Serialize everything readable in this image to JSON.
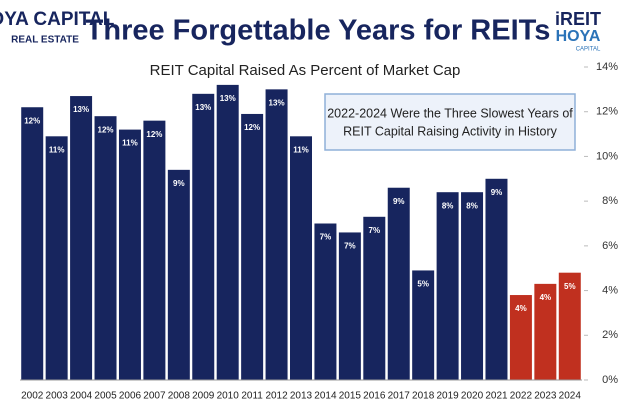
{
  "branding": {
    "left_logo": [
      "HOYA CAPITAL",
      "REAL ESTATE"
    ],
    "right_logo": [
      "iREIT",
      "HOYA",
      "CAPITAL"
    ]
  },
  "chart_data": {
    "type": "bar",
    "title": "Three Forgettable Years for REITs",
    "subtitle": "REIT Capital Raised As Percent of Market Cap",
    "annotation": [
      "2022-2024 Were the Three Slowest Years of",
      "REIT Capital Raising Activity in History"
    ],
    "categories": [
      "2002",
      "2003",
      "2004",
      "2005",
      "2006",
      "2007",
      "2008",
      "2009",
      "2010",
      "2011",
      "2012",
      "2013",
      "2014",
      "2015",
      "2016",
      "2017",
      "2018",
      "2019",
      "2020",
      "2021",
      "2022",
      "2023",
      "2024"
    ],
    "values": [
      12.2,
      10.9,
      12.7,
      11.8,
      11.2,
      11.6,
      9.4,
      12.8,
      13.2,
      11.9,
      13.0,
      10.9,
      7.0,
      6.6,
      7.3,
      8.6,
      4.9,
      8.4,
      8.4,
      9.0,
      3.8,
      4.3,
      4.8
    ],
    "value_labels": [
      "12%",
      "11%",
      "13%",
      "12%",
      "11%",
      "12%",
      "9%",
      "13%",
      "13%",
      "12%",
      "13%",
      "11%",
      "7%",
      "7%",
      "7%",
      "9%",
      "5%",
      "8%",
      "8%",
      "9%",
      "4%",
      "4%",
      "5%"
    ],
    "colors": [
      "#17255e",
      "#17255e",
      "#17255e",
      "#17255e",
      "#17255e",
      "#17255e",
      "#17255e",
      "#17255e",
      "#17255e",
      "#17255e",
      "#17255e",
      "#17255e",
      "#17255e",
      "#17255e",
      "#17255e",
      "#17255e",
      "#17255e",
      "#17255e",
      "#17255e",
      "#17255e",
      "#c0301f",
      "#c0301f",
      "#c0301f"
    ],
    "ylim": [
      0,
      14
    ],
    "yticks": [
      {
        "value": 0,
        "label": "0%"
      },
      {
        "value": 2,
        "label": "2%"
      },
      {
        "value": 4,
        "label": "4%"
      },
      {
        "value": 6,
        "label": "6%"
      },
      {
        "value": 8,
        "label": "8%"
      },
      {
        "value": 10,
        "label": "10%"
      },
      {
        "value": 12,
        "label": "12%"
      },
      {
        "value": 14,
        "label": "14%"
      }
    ],
    "y_axis_side": "right"
  }
}
